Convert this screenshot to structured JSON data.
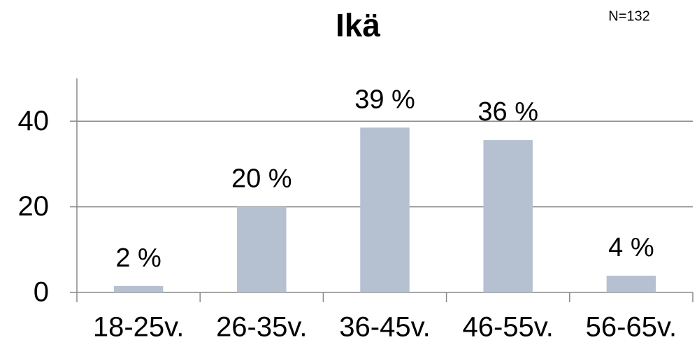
{
  "chart_data": {
    "type": "bar",
    "title": "Ikä",
    "annotation": "N=132",
    "categories": [
      "18-25v.",
      "26-35v.",
      "36-45v.",
      "46-55v.",
      "56-65v."
    ],
    "values": [
      1.5,
      20,
      38.5,
      35.6,
      3.9
    ],
    "value_labels": [
      "2 %",
      "20 %",
      "39 %",
      "36 %",
      "4 %"
    ],
    "color": "#b5c1d1",
    "ylim": [
      0,
      50
    ],
    "yticks": [
      0,
      20,
      40
    ],
    "grid": true
  }
}
